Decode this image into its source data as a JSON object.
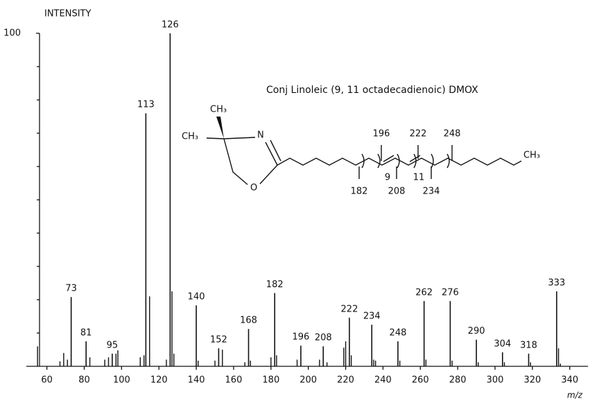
{
  "chart_data": {
    "type": "spectrum",
    "y_label": "INTENSITY",
    "x_label": "m/z",
    "annotation": "Conj Linoleic (9, 11 octadecadienoic) DMOX",
    "x": [
      73,
      81,
      95,
      113,
      126,
      140,
      152,
      168,
      182,
      196,
      208,
      222,
      234,
      248,
      262,
      276,
      290,
      304,
      318,
      333
    ],
    "values": [
      20.8,
      7.5,
      3.8,
      76,
      100,
      18.3,
      5.4,
      11.2,
      22,
      6.2,
      6,
      14.6,
      12.5,
      7.5,
      19.6,
      19.6,
      8,
      4.2,
      3.8,
      22.5
    ],
    "minor_x": [
      55,
      67,
      69,
      71,
      83,
      91,
      93,
      97,
      98,
      110,
      112,
      115,
      124,
      127,
      128,
      141,
      150,
      154,
      166,
      169,
      180,
      183,
      194,
      206,
      210,
      219,
      220,
      223,
      235,
      236,
      249,
      263,
      277,
      291,
      305,
      319,
      334,
      335
    ],
    "minor_values": [
      6,
      1.5,
      4,
      2,
      2.7,
      2,
      2.7,
      3.8,
      4.8,
      2.7,
      3.3,
      21,
      2,
      22.5,
      3.8,
      1.7,
      1.7,
      5,
      1.2,
      1.7,
      2.7,
      3.3,
      2,
      2,
      1.2,
      5.6,
      7.5,
      3.3,
      2,
      1.7,
      1.7,
      2,
      1.7,
      1.2,
      1.2,
      1.2,
      5.4,
      0.8
    ],
    "color": "#111111",
    "xlim": [
      49,
      349
    ],
    "xticks": [
      60,
      80,
      100,
      120,
      140,
      160,
      180,
      200,
      220,
      240,
      260,
      280,
      300,
      320,
      340
    ],
    "ylim": [
      0,
      100
    ],
    "yticks": [
      100
    ],
    "y_minor_ticks": [
      10,
      20,
      30,
      40,
      50,
      60,
      70,
      80,
      90
    ],
    "structure": {
      "methyl_top": "CH₃",
      "methyl_left": "CH₃",
      "nitrogen": "N",
      "oxygen": "O",
      "methyl_end": "CH₃",
      "fragments_above": [
        196,
        222,
        248
      ],
      "fragments_below": [
        182,
        208,
        234
      ],
      "positions": [
        9,
        11
      ]
    }
  }
}
